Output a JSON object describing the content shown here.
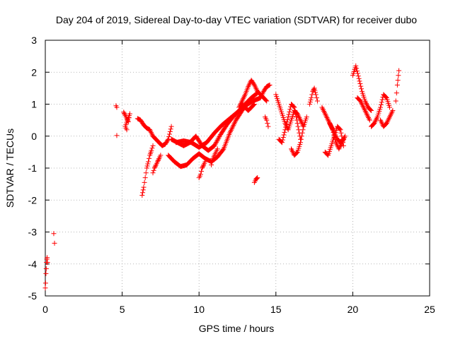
{
  "chart_data": {
    "type": "scatter",
    "title": "Day 204 of 2019, Sidereal Day-to-day VTEC variation (SDTVAR) for receiver dubo",
    "xlabel": "GPS time / hours",
    "ylabel": "SDTVAR / TECUs",
    "xlim": [
      0,
      25
    ],
    "ylim": [
      -5,
      3
    ],
    "xticks": [
      0,
      5,
      10,
      15,
      20,
      25
    ],
    "yticks": [
      -5,
      -4,
      -3,
      -2,
      -1,
      0,
      1,
      2,
      3
    ],
    "grid": true,
    "marker": "+",
    "color": "#ff0000",
    "series": [
      {
        "name": "SDTVAR",
        "segments": [
          {
            "x": [
              0.0,
              0.02,
              0.04,
              0.06,
              0.08,
              0.1,
              0.12,
              0.14
            ],
            "y": [
              -4.75,
              -4.6,
              -4.3,
              -4.15,
              -3.95,
              -3.85,
              -3.8,
              -3.95
            ]
          },
          {
            "x": [
              0.55,
              0.6
            ],
            "y": [
              -3.05,
              -3.35
            ]
          },
          {
            "x": [
              4.6,
              4.65,
              4.65
            ],
            "y": [
              0.95,
              0.9,
              0.02
            ]
          },
          {
            "x": [
              5.1,
              5.2,
              5.3,
              5.4,
              5.5,
              5.2,
              5.3
            ],
            "y": [
              0.75,
              0.65,
              0.55,
              0.45,
              0.7,
              0.3,
              0.2
            ]
          },
          {
            "x": [
              6.0,
              6.2,
              6.4,
              6.6,
              6.8,
              7.0,
              7.2,
              7.4,
              7.6,
              7.8,
              8.0,
              8.2
            ],
            "y": [
              0.55,
              0.5,
              0.35,
              0.25,
              0.2,
              0.0,
              -0.1,
              -0.2,
              -0.3,
              -0.25,
              -0.1,
              0.3
            ]
          },
          {
            "x": [
              6.3,
              6.4,
              6.5,
              6.6,
              6.7,
              6.8,
              6.9,
              7.0
            ],
            "y": [
              -1.85,
              -1.6,
              -1.3,
              -1.0,
              -0.8,
              -0.6,
              -0.45,
              -0.3
            ]
          },
          {
            "x": [
              7.0,
              7.1,
              7.2,
              7.3,
              7.4,
              7.5
            ],
            "y": [
              -1.15,
              -1.0,
              -0.9,
              -0.8,
              -0.7,
              -0.6
            ]
          },
          {
            "x": [
              8.0,
              8.4,
              8.8,
              9.2,
              9.6,
              10.0,
              10.4,
              10.8,
              11.2,
              11.6,
              12.0,
              12.4,
              12.8,
              13.2
            ],
            "y": [
              -0.6,
              -0.8,
              -0.95,
              -0.9,
              -0.7,
              -0.55,
              -0.7,
              -0.8,
              -0.65,
              -0.4,
              0.1,
              0.5,
              0.8,
              1.05
            ]
          },
          {
            "x": [
              8.2,
              8.6,
              9.0,
              9.4,
              9.8,
              10.2,
              10.6,
              11.0,
              11.4,
              11.8,
              12.2,
              12.6,
              13.0,
              13.4,
              13.8
            ],
            "y": [
              -0.1,
              -0.2,
              -0.3,
              -0.2,
              0.0,
              -0.3,
              -0.45,
              -0.3,
              0.05,
              0.35,
              0.6,
              0.8,
              1.0,
              1.2,
              1.35
            ]
          },
          {
            "x": [
              8.5,
              9.0,
              9.5,
              10.0,
              10.5,
              11.0,
              11.5,
              12.0,
              12.5,
              13.0,
              13.5,
              14.0
            ],
            "y": [
              -0.2,
              -0.15,
              -0.2,
              -0.35,
              -0.2,
              0.1,
              0.35,
              0.55,
              0.75,
              0.95,
              1.1,
              1.2
            ]
          },
          {
            "x": [
              10.0,
              10.1,
              10.2,
              10.3,
              10.4
            ],
            "y": [
              -1.3,
              -1.2,
              -1.0,
              -0.9,
              -0.8
            ]
          },
          {
            "x": [
              10.8,
              10.9,
              11.0,
              11.1,
              11.2
            ],
            "y": [
              -0.9,
              -0.7,
              -0.6,
              -0.5,
              -0.4
            ]
          },
          {
            "x": [
              12.6,
              12.8,
              13.0,
              13.2,
              13.4,
              13.6,
              13.8,
              14.0,
              14.2,
              14.4
            ],
            "y": [
              0.9,
              1.1,
              1.3,
              1.55,
              1.75,
              1.6,
              1.4,
              1.3,
              1.2,
              1.1
            ]
          },
          {
            "x": [
              12.8,
              13.0,
              13.2,
              13.4,
              13.6
            ],
            "y": [
              1.0,
              0.9,
              0.8,
              0.9,
              1.0
            ]
          },
          {
            "x": [
              13.6,
              13.7,
              13.8
            ],
            "y": [
              -1.45,
              -1.35,
              -1.3
            ]
          },
          {
            "x": [
              14.0,
              14.2,
              14.4,
              14.6
            ],
            "y": [
              1.2,
              1.4,
              1.55,
              1.6
            ]
          },
          {
            "x": [
              14.3,
              14.4,
              14.5
            ],
            "y": [
              0.6,
              0.5,
              0.3
            ]
          },
          {
            "x": [
              15.0,
              15.2,
              15.4,
              15.6,
              15.8,
              16.0,
              16.2,
              16.4,
              16.6,
              16.8
            ],
            "y": [
              1.3,
              1.0,
              0.7,
              0.4,
              0.2,
              0.5,
              0.8,
              0.7,
              0.5,
              0.3
            ]
          },
          {
            "x": [
              15.2,
              15.4,
              15.6,
              15.8,
              16.0,
              16.2,
              16.4,
              16.6
            ],
            "y": [
              -0.1,
              -0.2,
              0.2,
              0.6,
              1.0,
              0.9,
              0.4,
              -0.1
            ]
          },
          {
            "x": [
              16.0,
              16.2,
              16.4,
              16.6,
              16.8,
              17.0
            ],
            "y": [
              -0.4,
              -0.6,
              -0.5,
              -0.2,
              0.3,
              0.6
            ]
          },
          {
            "x": [
              17.2,
              17.3,
              17.4,
              17.5,
              17.6,
              17.7
            ],
            "y": [
              1.0,
              1.2,
              1.4,
              1.5,
              1.3,
              1.1
            ]
          },
          {
            "x": [
              18.0,
              18.2,
              18.4,
              18.6,
              18.8,
              19.0,
              19.2,
              19.4
            ],
            "y": [
              0.9,
              0.7,
              0.5,
              0.3,
              0.1,
              -0.1,
              -0.2,
              -0.1
            ]
          },
          {
            "x": [
              18.2,
              18.4,
              18.6,
              18.8,
              19.0,
              19.2,
              19.4
            ],
            "y": [
              -0.5,
              -0.6,
              -0.3,
              0.0,
              0.3,
              0.2,
              -0.3
            ]
          },
          {
            "x": [
              18.5,
              18.7,
              18.9,
              19.1,
              19.3,
              19.5
            ],
            "y": [
              0.4,
              0.2,
              -0.2,
              -0.4,
              -0.2,
              0.0
            ]
          },
          {
            "x": [
              20.0,
              20.2,
              20.4,
              20.6,
              20.8,
              21.0,
              21.2
            ],
            "y": [
              1.9,
              2.2,
              1.8,
              1.4,
              1.1,
              0.9,
              0.8
            ]
          },
          {
            "x": [
              20.3,
              20.5,
              20.7,
              20.9,
              21.1
            ],
            "y": [
              1.2,
              1.1,
              0.9,
              0.7,
              0.5
            ]
          },
          {
            "x": [
              21.2,
              21.4,
              21.6,
              21.8,
              22.0,
              22.2,
              22.4
            ],
            "y": [
              0.3,
              0.4,
              0.6,
              0.9,
              1.3,
              1.2,
              0.9
            ]
          },
          {
            "x": [
              21.8,
              22.0,
              22.2,
              22.4,
              22.6
            ],
            "y": [
              0.5,
              0.3,
              0.4,
              0.6,
              0.8
            ]
          },
          {
            "x": [
              22.8,
              22.9,
              23.0
            ],
            "y": [
              1.1,
              1.6,
              2.05
            ]
          }
        ]
      }
    ]
  }
}
